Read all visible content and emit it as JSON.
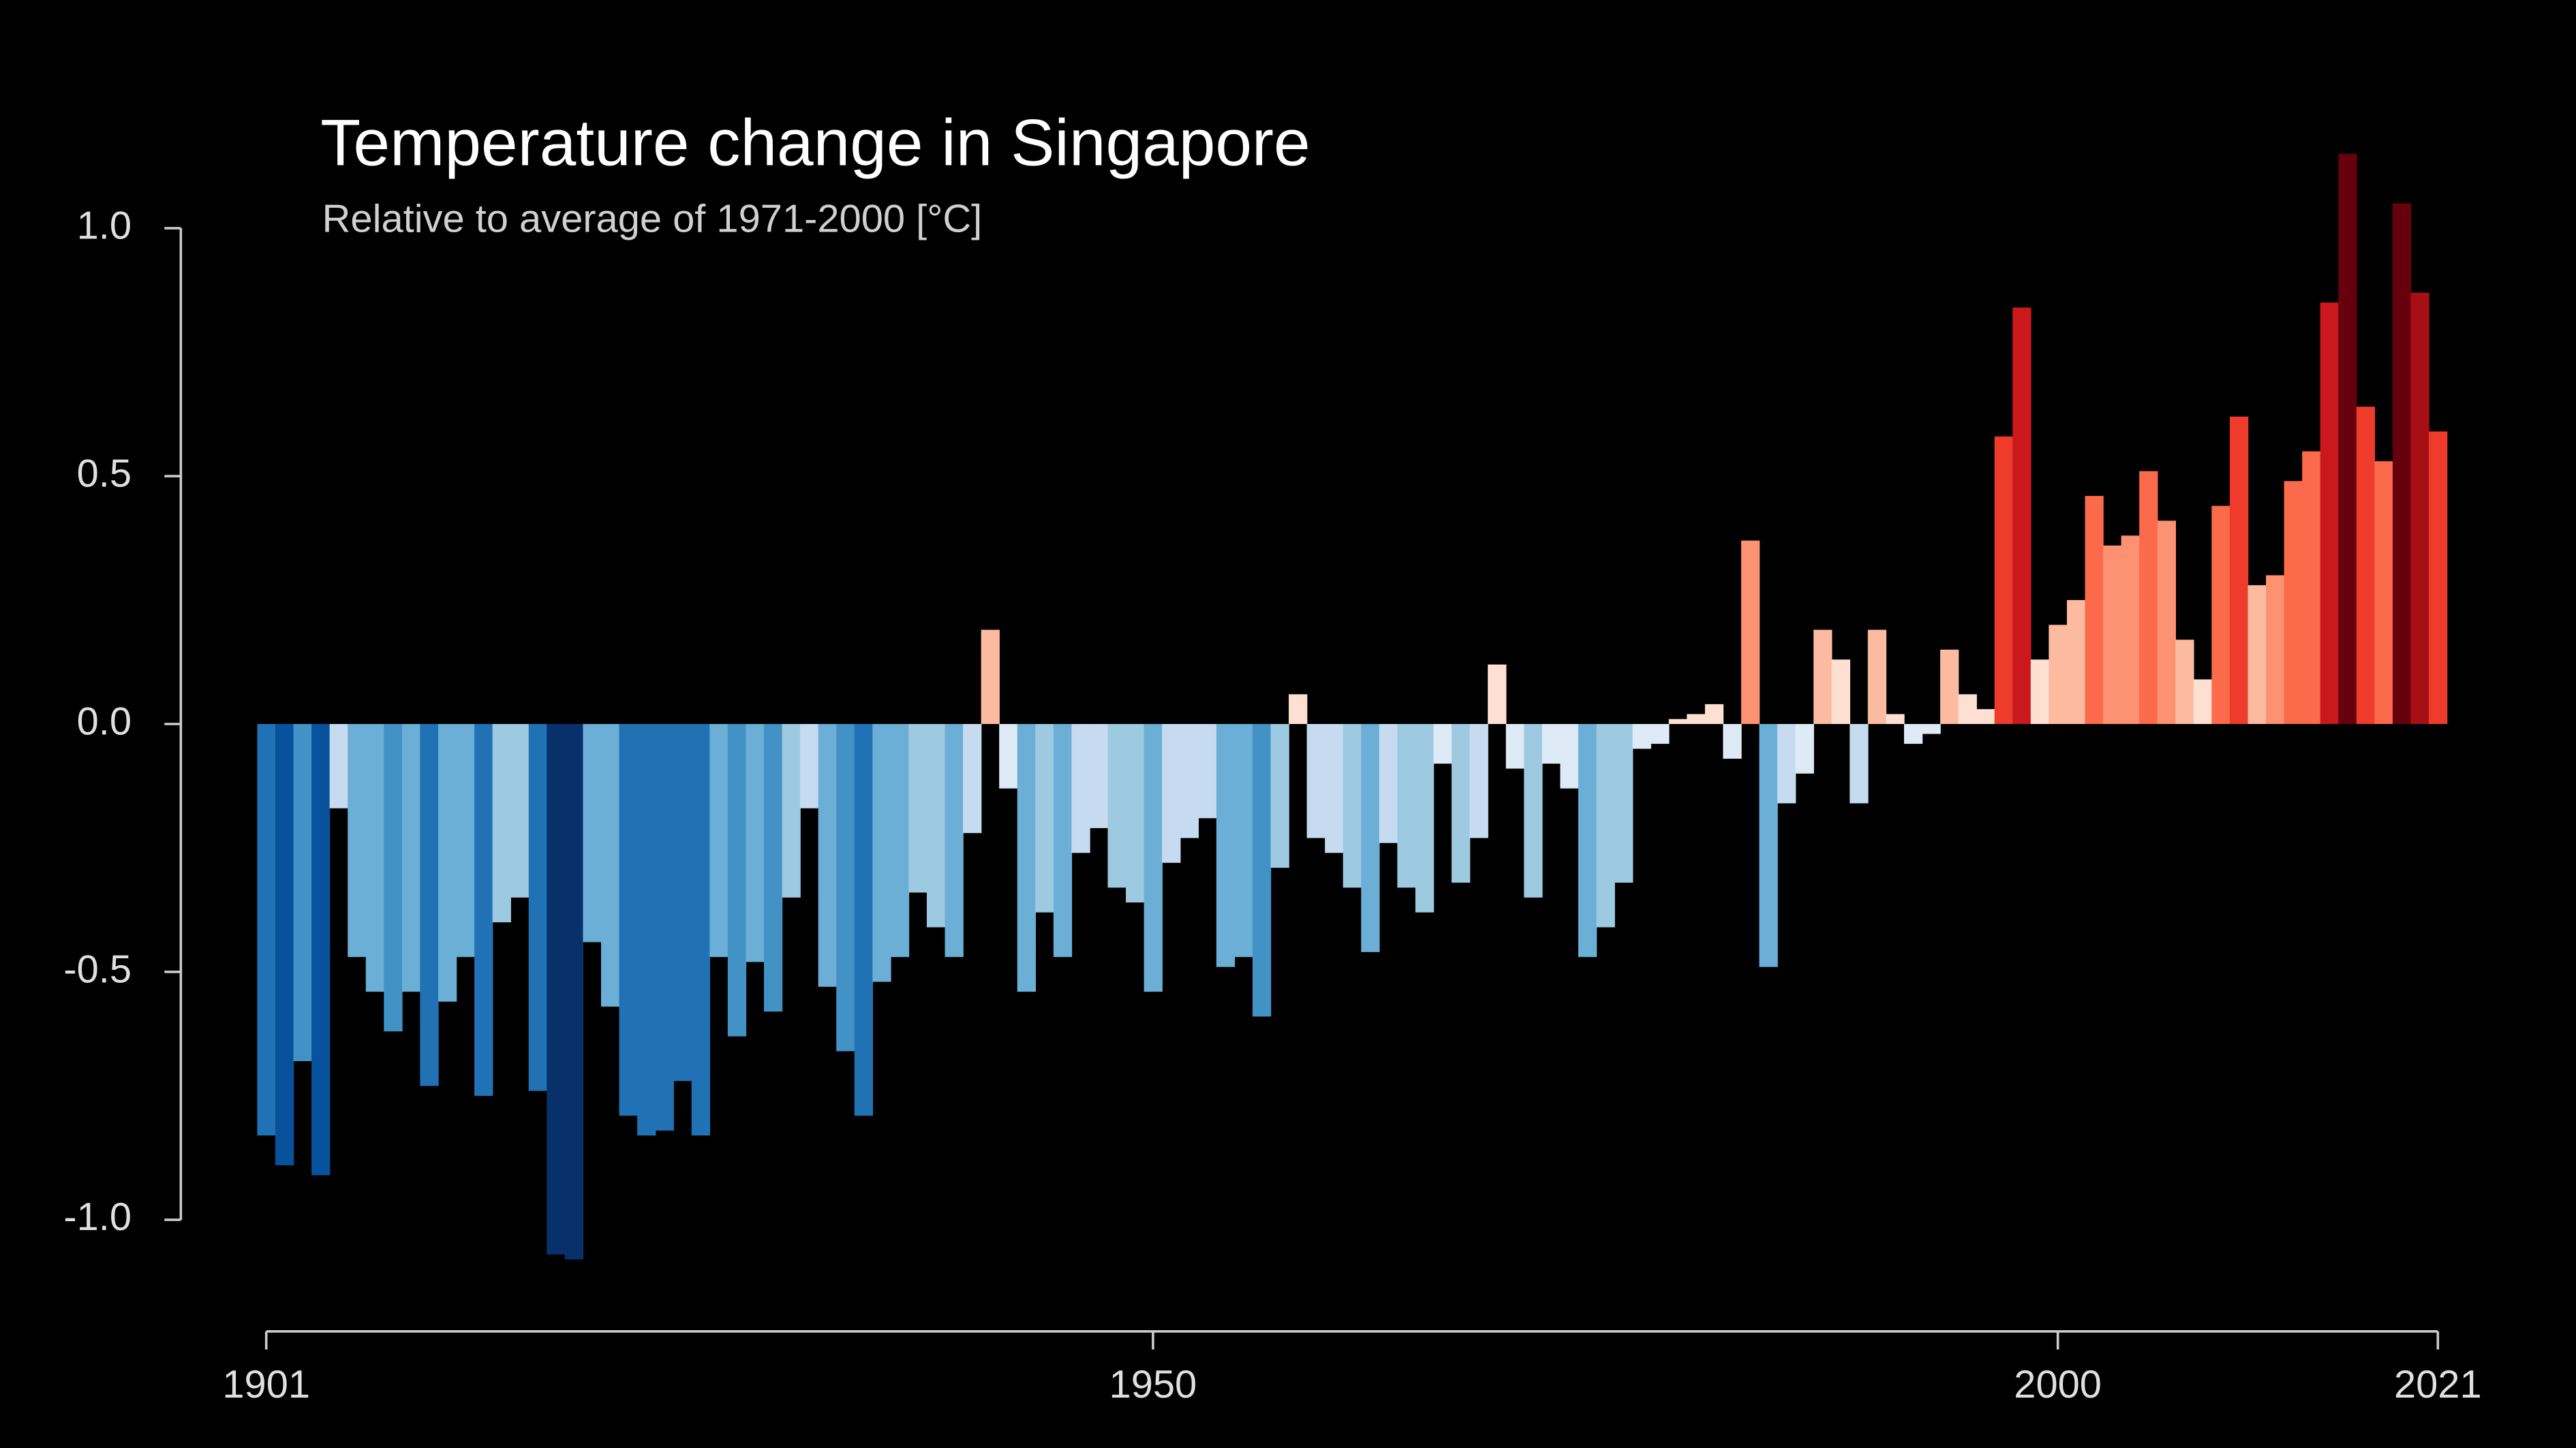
{
  "chart_data": {
    "type": "bar",
    "title": "Temperature change in Singapore",
    "subtitle": "Relative to average of 1971-2000  [°C]",
    "x": [
      1901,
      1902,
      1903,
      1904,
      1905,
      1906,
      1907,
      1908,
      1909,
      1910,
      1911,
      1912,
      1913,
      1914,
      1915,
      1916,
      1917,
      1918,
      1919,
      1920,
      1921,
      1922,
      1923,
      1924,
      1925,
      1926,
      1927,
      1928,
      1929,
      1930,
      1931,
      1932,
      1933,
      1934,
      1935,
      1936,
      1937,
      1938,
      1939,
      1940,
      1941,
      1942,
      1943,
      1944,
      1945,
      1946,
      1947,
      1948,
      1949,
      1950,
      1951,
      1952,
      1953,
      1954,
      1955,
      1956,
      1957,
      1958,
      1959,
      1960,
      1961,
      1962,
      1963,
      1964,
      1965,
      1966,
      1967,
      1968,
      1969,
      1970,
      1971,
      1972,
      1973,
      1974,
      1975,
      1976,
      1977,
      1978,
      1979,
      1980,
      1981,
      1982,
      1983,
      1984,
      1985,
      1986,
      1987,
      1988,
      1989,
      1990,
      1991,
      1992,
      1993,
      1994,
      1995,
      1996,
      1997,
      1998,
      1999,
      2000,
      2001,
      2002,
      2003,
      2004,
      2005,
      2006,
      2007,
      2008,
      2009,
      2010,
      2011,
      2012,
      2013,
      2014,
      2015,
      2016,
      2017,
      2018,
      2019,
      2020,
      2021
    ],
    "values": [
      -0.83,
      -0.89,
      -0.68,
      -0.91,
      -0.17,
      -0.47,
      -0.54,
      -0.62,
      -0.54,
      -0.73,
      -0.56,
      -0.47,
      -0.75,
      -0.4,
      -0.35,
      -0.74,
      -1.07,
      -1.08,
      -0.44,
      -0.57,
      -0.79,
      -0.83,
      -0.82,
      -0.72,
      -0.83,
      -0.47,
      -0.63,
      -0.48,
      -0.58,
      -0.35,
      -0.17,
      -0.53,
      -0.66,
      -0.79,
      -0.52,
      -0.47,
      -0.34,
      -0.41,
      -0.47,
      -0.22,
      0.19,
      -0.13,
      -0.54,
      -0.38,
      -0.47,
      -0.26,
      -0.21,
      -0.33,
      -0.36,
      -0.54,
      -0.28,
      -0.23,
      -0.19,
      -0.49,
      -0.47,
      -0.59,
      -0.29,
      0.06,
      -0.23,
      -0.26,
      -0.33,
      -0.46,
      -0.24,
      -0.33,
      -0.38,
      -0.08,
      -0.32,
      -0.23,
      0.12,
      -0.09,
      -0.35,
      -0.08,
      -0.13,
      -0.47,
      -0.41,
      -0.32,
      -0.05,
      -0.04,
      0.01,
      0.02,
      0.04,
      -0.07,
      0.37,
      -0.49,
      -0.16,
      -0.1,
      0.19,
      0.13,
      -0.16,
      0.19,
      0.02,
      -0.04,
      -0.02,
      0.15,
      0.06,
      0.03,
      0.58,
      0.84,
      0.13,
      0.2,
      0.25,
      0.46,
      0.36,
      0.38,
      0.51,
      0.41,
      0.17,
      0.09,
      0.44,
      0.62,
      0.28,
      0.3,
      0.49,
      0.55,
      0.85,
      1.15,
      0.64,
      0.53,
      1.05,
      0.87,
      0.59
    ],
    "palette": [
      "#08306b",
      "#08519c",
      "#2171b5",
      "#4292c6",
      "#6baed6",
      "#9ecae1",
      "#c6dbef",
      "#deebf7",
      "#fee0d2",
      "#fcbba1",
      "#fc9272",
      "#fb6a4a",
      "#ef3b2c",
      "#cb181d",
      "#a50f15",
      "#67000d"
    ],
    "xlim": [
      1901,
      2021
    ],
    "xticks": [
      1901,
      1950,
      2000,
      2021
    ],
    "ylim": [
      -1.0,
      1.0
    ],
    "yticks": [
      {
        "value": -1.0,
        "label": "-1.0"
      },
      {
        "value": -0.5,
        "label": "-0.5"
      },
      {
        "value": 0.0,
        "label": "0.0"
      },
      {
        "value": 0.5,
        "label": "0.5"
      },
      {
        "value": 1.0,
        "label": "1.0"
      }
    ]
  }
}
